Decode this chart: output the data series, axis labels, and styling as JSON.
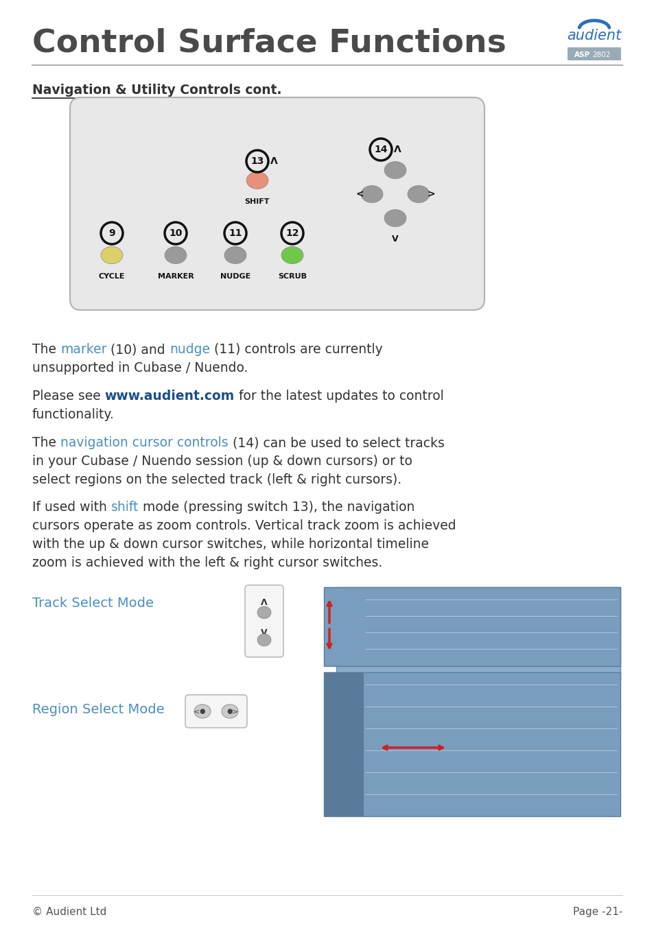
{
  "title": "Control Surface Functions",
  "subtitle": "Navigation & Utility Controls cont.",
  "bg_color": "#ffffff",
  "panel_bg": "#e8e8e8",
  "text_color": "#333333",
  "blue_color": "#4a8fc0",
  "heading_color": "#4a4a4a",
  "para1": [
    [
      "The ",
      "#333333",
      false
    ],
    [
      "marker",
      "#4a8fc0",
      false
    ],
    [
      " (10) and ",
      "#333333",
      false
    ],
    [
      "nudge",
      "#4a8fc0",
      false
    ],
    [
      " (11) controls are currently",
      "#333333",
      false
    ]
  ],
  "para1b": [
    [
      "unsupported in Cubase / Nuendo.",
      "#333333",
      false
    ]
  ],
  "para2": [
    [
      "Please see ",
      "#333333",
      false
    ],
    [
      "www.audient.com",
      "#1a4e8a",
      true
    ],
    [
      " for the latest updates to control",
      "#333333",
      false
    ]
  ],
  "para2b": [
    [
      "functionality.",
      "#333333",
      false
    ]
  ],
  "para3": [
    [
      "The ",
      "#333333",
      false
    ],
    [
      "navigation cursor controls",
      "#4a8fc0",
      false
    ],
    [
      " (14) can be used to select tracks",
      "#333333",
      false
    ]
  ],
  "para3b": [
    [
      "in your Cubase / Nuendo session (up & down cursors) or to",
      "#333333",
      false
    ]
  ],
  "para3c": [
    [
      "select regions on the selected track (left & right cursors).",
      "#333333",
      false
    ]
  ],
  "para4": [
    [
      "If used with ",
      "#333333",
      false
    ],
    [
      "shift",
      "#4a8fc0",
      false
    ],
    [
      " mode (pressing switch 13), the navigation",
      "#333333",
      false
    ]
  ],
  "para4b": [
    [
      "cursors operate as zoom controls. Vertical track zoom is achieved",
      "#333333",
      false
    ]
  ],
  "para4c": [
    [
      "with the up & down cursor switches, while horizontal timeline",
      "#333333",
      false
    ]
  ],
  "para4d": [
    [
      "zoom is achieved with the left & right cursor switches.",
      "#333333",
      false
    ]
  ],
  "track_select_label": "Track Select Mode",
  "region_select_label": "Region Select Mode",
  "footer_left": "© Audient Ltd",
  "footer_right": "Page -21-"
}
